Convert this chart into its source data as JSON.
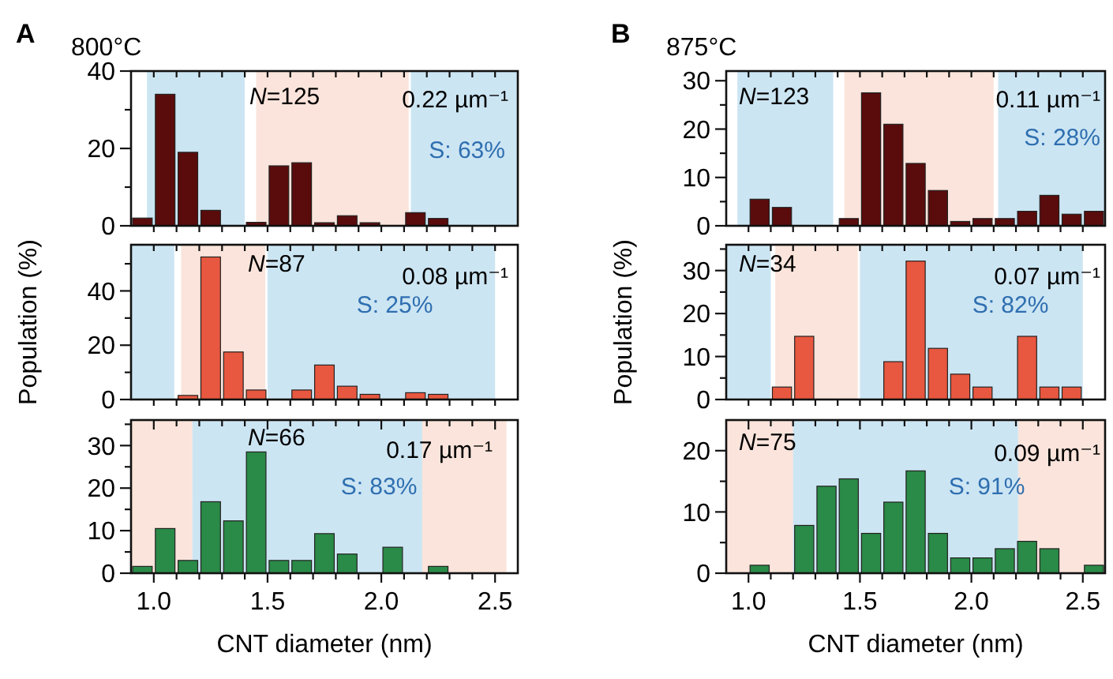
{
  "chart_data": [
    {
      "type": "histogram",
      "title": "800°C",
      "subtitle": "A",
      "bins": [
        0.9,
        1.0,
        1.1,
        1.2,
        1.3,
        1.4,
        1.5,
        1.6,
        1.7,
        1.8,
        1.9,
        2.0,
        2.1,
        2.2,
        2.3
      ],
      "values": [
        2,
        34,
        19,
        4,
        0,
        0.9,
        15.5,
        16.3,
        0.8,
        2.6,
        0.8,
        0,
        3.4,
        1.9
      ],
      "color": "#5a0b0b",
      "xlim": [
        0.9,
        2.6
      ],
      "ylim": [
        0,
        40
      ],
      "xticks": [
        {
          "value": 1.0,
          "label": null
        },
        {
          "value": 1.1,
          "label": null
        },
        {
          "value": 1.2,
          "label": null
        },
        {
          "value": 1.3,
          "label": null
        },
        {
          "value": 1.4,
          "label": null
        },
        {
          "value": 1.5,
          "label": null
        },
        {
          "value": 1.6,
          "label": null
        },
        {
          "value": 1.7,
          "label": null
        },
        {
          "value": 1.8,
          "label": null
        },
        {
          "value": 1.9,
          "label": null
        },
        {
          "value": 2.0,
          "label": null
        },
        {
          "value": 2.1,
          "label": null
        },
        {
          "value": 2.2,
          "label": null
        },
        {
          "value": 2.3,
          "label": null
        },
        {
          "value": 2.4,
          "label": null
        },
        {
          "value": 2.5,
          "label": null
        }
      ],
      "yticks": [
        0,
        {
          "value": 10,
          "label": null
        },
        20,
        {
          "value": 30,
          "label": null
        },
        40
      ],
      "tick_labels": "y",
      "annotations": [
        "N=125",
        "0.22 µm⁻¹",
        "S: 63%"
      ],
      "bands": [
        {
          "axis": "x",
          "from": 0.97,
          "to": 1.4,
          "color": "#bfdff0"
        },
        {
          "axis": "x",
          "from": 1.45,
          "to": 2.12,
          "color": "#f9ddd2"
        },
        {
          "axis": "x",
          "from": 2.13,
          "to": 2.6,
          "color": "#bfdff0"
        }
      ]
    },
    {
      "type": "histogram",
      "ylabel": "Population (%)",
      "bins": [
        1.1,
        1.2,
        1.3,
        1.4,
        1.5,
        1.6,
        1.7,
        1.8,
        1.9,
        2.0,
        2.1,
        2.2,
        2.3
      ],
      "values": [
        1.5,
        52.5,
        17.5,
        3.5,
        0,
        3.5,
        12.7,
        4.9,
        1.9,
        0,
        2.5,
        1.9
      ],
      "color": "#e8573f",
      "xlim": [
        0.9,
        2.6
      ],
      "ylim": [
        0,
        57
      ],
      "xticks": [
        {
          "value": 1.0,
          "label": null
        },
        {
          "value": 1.1,
          "label": null
        },
        {
          "value": 1.2,
          "label": null
        },
        {
          "value": 1.3,
          "label": null
        },
        {
          "value": 1.4,
          "label": null
        },
        {
          "value": 1.5,
          "label": null
        },
        {
          "value": 1.6,
          "label": null
        },
        {
          "value": 1.7,
          "label": null
        },
        {
          "value": 1.8,
          "label": null
        },
        {
          "value": 1.9,
          "label": null
        },
        {
          "value": 2.0,
          "label": null
        },
        {
          "value": 2.1,
          "label": null
        },
        {
          "value": 2.2,
          "label": null
        },
        {
          "value": 2.3,
          "label": null
        },
        {
          "value": 2.4,
          "label": null
        },
        {
          "value": 2.5,
          "label": null
        }
      ],
      "yticks": [
        0,
        {
          "value": 10,
          "label": null
        },
        20,
        {
          "value": 30,
          "label": null
        },
        40,
        {
          "value": 50,
          "label": null
        }
      ],
      "tick_labels": "y",
      "annotations": [
        "N=87",
        "0.08 µm⁻¹",
        "S: 25%"
      ],
      "bands": [
        {
          "axis": "x",
          "from": 0.9,
          "to": 1.09,
          "color": "#bfdff0"
        },
        {
          "axis": "x",
          "from": 1.12,
          "to": 1.49,
          "color": "#f9ddd2"
        },
        {
          "axis": "x",
          "from": 1.5,
          "to": 2.5,
          "color": "#bfdff0"
        }
      ]
    },
    {
      "type": "histogram",
      "xlabel": "CNT diameter (nm)",
      "bins": [
        0.9,
        1.0,
        1.1,
        1.2,
        1.3,
        1.4,
        1.5,
        1.6,
        1.7,
        1.8,
        1.9,
        2.0,
        2.1,
        2.2,
        2.3
      ],
      "values": [
        1.6,
        10.5,
        3,
        16.8,
        12.3,
        28.5,
        3,
        3,
        9.3,
        4.5,
        0,
        6.1,
        0,
        1.6
      ],
      "color": "#2a8a47",
      "xlim": [
        0.9,
        2.6
      ],
      "ylim": [
        0,
        36
      ],
      "xticks": [
        {
          "value": 1.0,
          "label": "1.0"
        },
        {
          "value": 1.1,
          "label": null
        },
        {
          "value": 1.2,
          "label": null
        },
        {
          "value": 1.3,
          "label": null
        },
        {
          "value": 1.4,
          "label": null
        },
        {
          "value": 1.5,
          "label": "1.5"
        },
        {
          "value": 1.6,
          "label": null
        },
        {
          "value": 1.7,
          "label": null
        },
        {
          "value": 1.8,
          "label": null
        },
        {
          "value": 1.9,
          "label": null
        },
        {
          "value": 2.0,
          "label": "2.0"
        },
        {
          "value": 2.1,
          "label": null
        },
        {
          "value": 2.2,
          "label": null
        },
        {
          "value": 2.3,
          "label": null
        },
        {
          "value": 2.4,
          "label": null
        },
        {
          "value": 2.5,
          "label": "2.5"
        }
      ],
      "yticks": [
        0,
        {
          "value": 5,
          "label": null
        },
        10,
        {
          "value": 15,
          "label": null
        },
        20,
        {
          "value": 25,
          "label": null
        },
        30,
        {
          "value": 35,
          "label": null
        }
      ],
      "annotations": [
        "N=66",
        "0.17 µm⁻¹",
        "S: 83%"
      ],
      "bands": [
        {
          "axis": "x",
          "from": 0.9,
          "to": 1.17,
          "color": "#f9ddd2"
        },
        {
          "axis": "x",
          "from": 1.17,
          "to": 2.18,
          "color": "#bfdff0"
        },
        {
          "axis": "x",
          "from": 2.18,
          "to": 2.55,
          "color": "#f9ddd2"
        }
      ]
    },
    {
      "type": "histogram",
      "title": "875°C",
      "subtitle": "B",
      "bins": [
        1.0,
        1.1,
        1.2,
        1.3,
        1.4,
        1.5,
        1.6,
        1.7,
        1.8,
        1.9,
        2.0,
        2.1,
        2.2,
        2.3,
        2.4,
        2.5,
        2.6
      ],
      "values": [
        5.5,
        3.8,
        0,
        0,
        1.5,
        27.5,
        21,
        12.9,
        7.3,
        0.9,
        1.5,
        1.5,
        3,
        6.3,
        2.4,
        3
      ],
      "color": "#5a0b0b",
      "xlim": [
        0.9,
        2.6
      ],
      "ylim": [
        0,
        32
      ],
      "xticks": [
        {
          "value": 1.0,
          "label": null
        },
        {
          "value": 1.1,
          "label": null
        },
        {
          "value": 1.2,
          "label": null
        },
        {
          "value": 1.3,
          "label": null
        },
        {
          "value": 1.4,
          "label": null
        },
        {
          "value": 1.5,
          "label": null
        },
        {
          "value": 1.6,
          "label": null
        },
        {
          "value": 1.7,
          "label": null
        },
        {
          "value": 1.8,
          "label": null
        },
        {
          "value": 1.9,
          "label": null
        },
        {
          "value": 2.0,
          "label": null
        },
        {
          "value": 2.1,
          "label": null
        },
        {
          "value": 2.2,
          "label": null
        },
        {
          "value": 2.3,
          "label": null
        },
        {
          "value": 2.4,
          "label": null
        },
        {
          "value": 2.5,
          "label": null
        }
      ],
      "yticks": [
        0,
        {
          "value": 5,
          "label": null
        },
        10,
        {
          "value": 15,
          "label": null
        },
        20,
        {
          "value": 25,
          "label": null
        },
        30
      ],
      "tick_labels": "y",
      "annotations": [
        "N=123",
        "0.11 µm⁻¹",
        "S: 28%"
      ],
      "bands": [
        {
          "axis": "x",
          "from": 0.95,
          "to": 1.38,
          "color": "#bfdff0"
        },
        {
          "axis": "x",
          "from": 1.43,
          "to": 2.1,
          "color": "#f9ddd2"
        },
        {
          "axis": "x",
          "from": 2.12,
          "to": 2.6,
          "color": "#bfdff0"
        }
      ]
    },
    {
      "type": "histogram",
      "ylabel": "Population (%)",
      "bins": [
        1.1,
        1.2,
        1.3,
        1.4,
        1.5,
        1.6,
        1.7,
        1.8,
        1.9,
        2.0,
        2.1,
        2.2,
        2.3,
        2.4,
        2.5
      ],
      "values": [
        2.9,
        14.7,
        0,
        0,
        0,
        8.8,
        32.2,
        11.9,
        5.9,
        2.9,
        0,
        14.7,
        2.9,
        2.9
      ],
      "color": "#e8573f",
      "xlim": [
        0.9,
        2.6
      ],
      "ylim": [
        0,
        36
      ],
      "xticks": [
        {
          "value": 1.0,
          "label": null
        },
        {
          "value": 1.1,
          "label": null
        },
        {
          "value": 1.2,
          "label": null
        },
        {
          "value": 1.3,
          "label": null
        },
        {
          "value": 1.4,
          "label": null
        },
        {
          "value": 1.5,
          "label": null
        },
        {
          "value": 1.6,
          "label": null
        },
        {
          "value": 1.7,
          "label": null
        },
        {
          "value": 1.8,
          "label": null
        },
        {
          "value": 1.9,
          "label": null
        },
        {
          "value": 2.0,
          "label": null
        },
        {
          "value": 2.1,
          "label": null
        },
        {
          "value": 2.2,
          "label": null
        },
        {
          "value": 2.3,
          "label": null
        },
        {
          "value": 2.4,
          "label": null
        },
        {
          "value": 2.5,
          "label": null
        }
      ],
      "yticks": [
        0,
        {
          "value": 5,
          "label": null
        },
        10,
        {
          "value": 15,
          "label": null
        },
        20,
        {
          "value": 25,
          "label": null
        },
        30,
        {
          "value": 35,
          "label": null
        }
      ],
      "tick_labels": "y",
      "annotations": [
        "N=34",
        "0.07 µm⁻¹",
        "S: 82%"
      ],
      "bands": [
        {
          "axis": "x",
          "from": 0.9,
          "to": 1.1,
          "color": "#bfdff0"
        },
        {
          "axis": "x",
          "from": 1.12,
          "to": 1.49,
          "color": "#f9ddd2"
        },
        {
          "axis": "x",
          "from": 1.5,
          "to": 2.5,
          "color": "#bfdff0"
        }
      ]
    },
    {
      "type": "histogram",
      "xlabel": "CNT diameter (nm)",
      "bins": [
        1.0,
        1.1,
        1.2,
        1.3,
        1.4,
        1.5,
        1.6,
        1.7,
        1.8,
        1.9,
        2.0,
        2.1,
        2.2,
        2.3,
        2.4,
        2.5,
        2.6
      ],
      "values": [
        1.3,
        0,
        7.8,
        14.2,
        15.4,
        6.5,
        11.6,
        16.7,
        6.5,
        2.5,
        2.5,
        4,
        5.2,
        4,
        0,
        1.3
      ],
      "color": "#2a8a47",
      "xlim": [
        0.9,
        2.6
      ],
      "ylim": [
        0,
        25
      ],
      "xticks": [
        {
          "value": 1.0,
          "label": "1.0"
        },
        {
          "value": 1.1,
          "label": null
        },
        {
          "value": 1.2,
          "label": null
        },
        {
          "value": 1.3,
          "label": null
        },
        {
          "value": 1.4,
          "label": null
        },
        {
          "value": 1.5,
          "label": "1.5"
        },
        {
          "value": 1.6,
          "label": null
        },
        {
          "value": 1.7,
          "label": null
        },
        {
          "value": 1.8,
          "label": null
        },
        {
          "value": 1.9,
          "label": null
        },
        {
          "value": 2.0,
          "label": "2.0"
        },
        {
          "value": 2.1,
          "label": null
        },
        {
          "value": 2.2,
          "label": null
        },
        {
          "value": 2.3,
          "label": null
        },
        {
          "value": 2.4,
          "label": null
        },
        {
          "value": 2.5,
          "label": "2.5"
        }
      ],
      "yticks": [
        0,
        {
          "value": 5,
          "label": null
        },
        10,
        {
          "value": 15,
          "label": null
        },
        20
      ],
      "annotations": [
        "N=75",
        "0.09 µm⁻¹",
        "S: 91%"
      ],
      "bands": [
        {
          "axis": "x",
          "from": 0.9,
          "to": 1.2,
          "color": "#f9ddd2"
        },
        {
          "axis": "x",
          "from": 1.2,
          "to": 2.21,
          "color": "#bfdff0"
        },
        {
          "axis": "x",
          "from": 2.21,
          "to": 2.6,
          "color": "#f9ddd2"
        }
      ]
    }
  ]
}
